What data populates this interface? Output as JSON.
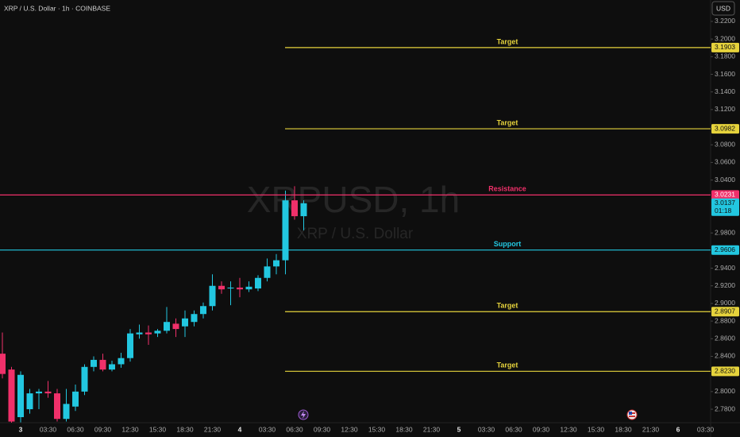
{
  "chart_data": {
    "type": "candlestick",
    "title": "XRP / U.S. Dollar · 1h · COINBASE",
    "watermark": "XRPUSD, 1h",
    "watermark_subtitle": "XRP / U.S. Dollar",
    "currency": "USD",
    "categories": [
      null,
      null,
      "3",
      null,
      null,
      "03:30",
      null,
      null,
      "06:30",
      null,
      null,
      "09:30",
      null,
      null,
      "12:30",
      null,
      null,
      "15:30",
      null,
      null,
      "18:30",
      null,
      null,
      "21:30",
      null,
      null,
      "4",
      null,
      null,
      "03:30",
      null,
      null,
      "06:30",
      null,
      null,
      "09:30",
      null,
      null,
      "12:30",
      null,
      null,
      "15:30",
      null,
      null,
      "18:30",
      null,
      null,
      "21:30",
      null,
      null,
      "5",
      null,
      null,
      "03:30",
      null,
      null,
      "06:30",
      null,
      null,
      "09:30",
      null,
      null,
      "12:30",
      null,
      null,
      "15:30",
      null,
      null,
      "18:30",
      null,
      null,
      "21:30",
      null,
      null,
      "6",
      null,
      null,
      "03:30",
      null,
      null
    ],
    "open": [
      2.843,
      2.825,
      2.771,
      2.78,
      2.798,
      2.8,
      2.798,
      2.769,
      2.783,
      2.8,
      2.828,
      2.836,
      2.825,
      2.831,
      2.838,
      2.865,
      2.867,
      2.866,
      2.869,
      2.877,
      2.874,
      2.879,
      2.888,
      2.897,
      2.92,
      2.917,
      2.918,
      2.916,
      2.917,
      2.929,
      2.942,
      2.949,
      3.017,
      2.999,
      null,
      null,
      null,
      null,
      null,
      null,
      null,
      null,
      null,
      null,
      null,
      null,
      null,
      null,
      null,
      null,
      null,
      null,
      null,
      null,
      null,
      null,
      null,
      null,
      null,
      null,
      null,
      null,
      null,
      null,
      null,
      null,
      null,
      null,
      null,
      null,
      null,
      null,
      null,
      null,
      null,
      null,
      null,
      null,
      null,
      null
    ],
    "high": [
      2.867,
      2.828,
      2.823,
      2.803,
      2.803,
      2.812,
      2.803,
      2.803,
      2.808,
      2.831,
      2.84,
      2.843,
      2.835,
      2.844,
      2.871,
      2.876,
      2.875,
      2.871,
      2.896,
      2.883,
      2.892,
      2.892,
      2.901,
      2.933,
      2.925,
      2.925,
      2.929,
      2.925,
      2.932,
      2.951,
      2.956,
      3.028,
      3.033,
      3.017,
      null,
      null,
      null,
      null,
      null,
      null,
      null,
      null,
      null,
      null,
      null,
      null,
      null,
      null,
      null,
      null,
      null,
      null,
      null,
      null,
      null,
      null,
      null,
      null,
      null,
      null,
      null,
      null,
      null,
      null,
      null,
      null,
      null,
      null,
      null,
      null,
      null,
      null,
      null,
      null,
      null,
      null,
      null,
      null,
      null,
      null
    ],
    "low": [
      2.815,
      2.762,
      2.765,
      2.775,
      2.78,
      2.793,
      2.766,
      2.766,
      2.778,
      2.796,
      2.823,
      2.823,
      2.823,
      2.827,
      2.834,
      2.86,
      2.853,
      2.862,
      2.866,
      2.862,
      2.862,
      2.874,
      2.883,
      2.892,
      2.911,
      2.898,
      2.907,
      2.913,
      2.914,
      2.925,
      2.933,
      2.933,
      2.995,
      2.983,
      null,
      null,
      null,
      null,
      null,
      null,
      null,
      null,
      null,
      null,
      null,
      null,
      null,
      null,
      null,
      null,
      null,
      null,
      null,
      null,
      null,
      null,
      null,
      null,
      null,
      null,
      null,
      null,
      null,
      null,
      null,
      null,
      null,
      null,
      null,
      null,
      null,
      null,
      null,
      null,
      null,
      null,
      null,
      null,
      null,
      null
    ],
    "close": [
      2.82,
      2.766,
      2.819,
      2.798,
      2.8,
      2.798,
      2.769,
      2.786,
      2.8,
      2.828,
      2.836,
      2.825,
      2.831,
      2.838,
      2.866,
      2.867,
      2.865,
      2.869,
      2.879,
      2.871,
      2.883,
      2.888,
      2.897,
      2.92,
      2.916,
      2.918,
      2.916,
      2.919,
      2.929,
      2.942,
      2.949,
      3.017,
      2.999,
      3.0137,
      null,
      null,
      null,
      null,
      null,
      null,
      null,
      null,
      null,
      null,
      null,
      null,
      null,
      null,
      null,
      null,
      null,
      null,
      null,
      null,
      null,
      null,
      null,
      null,
      null,
      null,
      null,
      null,
      null,
      null,
      null,
      null,
      null,
      null,
      null,
      null,
      null,
      null,
      null,
      null,
      null,
      null,
      null,
      null,
      null,
      null
    ],
    "up_color": "#22c7e0",
    "down_color": "#f0306a",
    "ylim": [
      2.7647,
      3.2443
    ],
    "yticks": [
      {
        "value": 3.22,
        "label": "3.2200"
      },
      {
        "value": 3.2,
        "label": "3.2000"
      },
      {
        "value": 3.18,
        "label": "3.1800"
      },
      {
        "value": 3.16,
        "label": "3.1600"
      },
      {
        "value": 3.14,
        "label": "3.1400"
      },
      {
        "value": 3.12,
        "label": "3.1200"
      },
      {
        "value": 3.1,
        "label": "3.1000"
      },
      {
        "value": 3.08,
        "label": "3.0800"
      },
      {
        "value": 3.06,
        "label": "3.0600"
      },
      {
        "value": 3.04,
        "label": "3.0400"
      },
      {
        "value": 2.98,
        "label": "2.9800"
      },
      {
        "value": 2.94,
        "label": "2.9400"
      },
      {
        "value": 2.92,
        "label": "2.9200"
      },
      {
        "value": 2.9,
        "label": "2.9000"
      },
      {
        "value": 2.88,
        "label": "2.8800"
      },
      {
        "value": 2.86,
        "label": "2.8600"
      },
      {
        "value": 2.84,
        "label": "2.8400"
      },
      {
        "value": 2.8,
        "label": "2.8000"
      },
      {
        "value": 2.78,
        "label": "2.7800"
      }
    ],
    "levels": [
      {
        "name": "Target",
        "value": 3.1903,
        "value_label": "3.1903",
        "color": "#e6d33c",
        "full": false
      },
      {
        "name": "Target",
        "value": 3.0982,
        "value_label": "3.0982",
        "color": "#e6d33c",
        "full": false
      },
      {
        "name": "Resistance",
        "value": 3.0231,
        "value_label": "3.0231",
        "color": "#f0306a",
        "full": true
      },
      {
        "name": "Support",
        "value": 2.9606,
        "value_label": "2.9606",
        "color": "#22c7e0",
        "full": true
      },
      {
        "name": "Target",
        "value": 2.8907,
        "value_label": "2.8907",
        "color": "#e6d33c",
        "full": false
      },
      {
        "name": "Target",
        "value": 2.823,
        "value_label": "2.8230",
        "color": "#e6d33c",
        "full": false
      }
    ],
    "last_price": {
      "value": 3.0137,
      "countdown": "01:18"
    }
  }
}
